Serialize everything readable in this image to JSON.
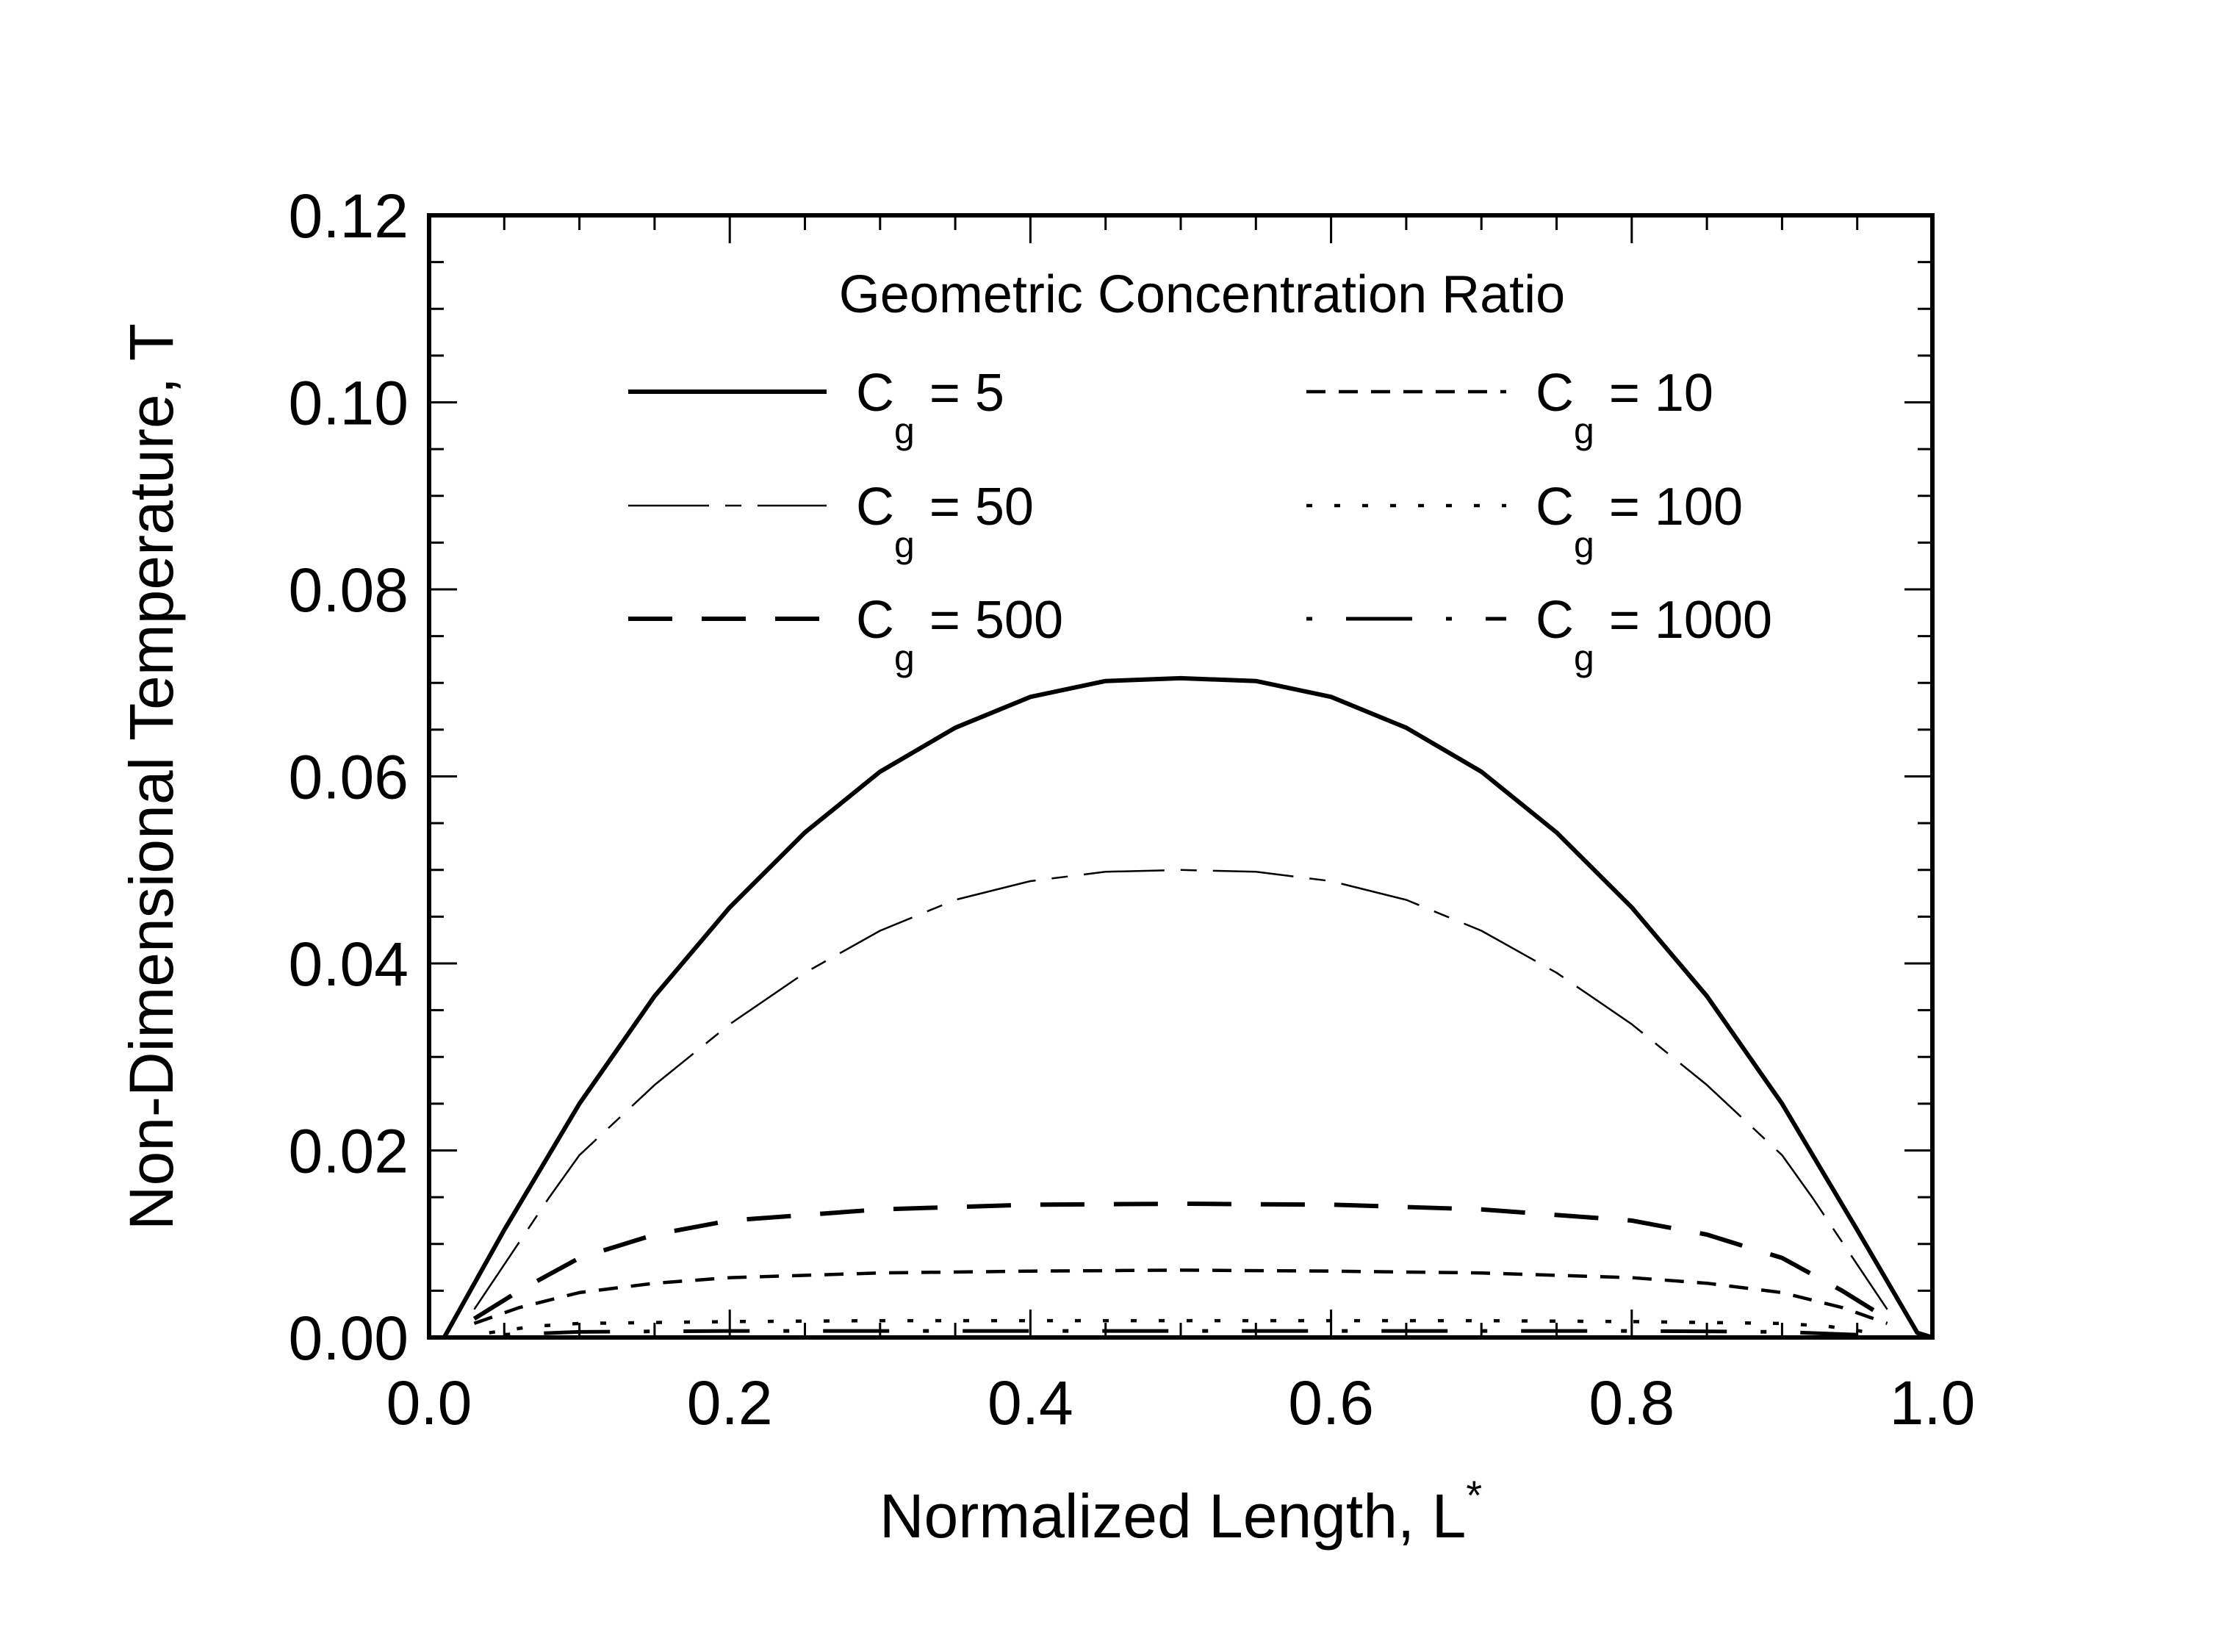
{
  "chart_data": {
    "type": "line",
    "title": "",
    "xlabel": "Normalized Length, L",
    "xlabel_superscript": "*",
    "ylabel": "Non-Dimensional Temperature, T",
    "xlim": [
      0.0,
      1.0
    ],
    "ylim": [
      0.0,
      0.12
    ],
    "x_ticks": [
      "0.0",
      "0.2",
      "0.4",
      "0.6",
      "0.8",
      "1.0"
    ],
    "y_ticks": [
      "0.00",
      "0.02",
      "0.04",
      "0.06",
      "0.08",
      "0.10",
      "0.12"
    ],
    "grid": false,
    "legend": {
      "title": "Geometric Concentration Ratio",
      "placement": "top-center"
    },
    "series": [
      {
        "name": "C = 5",
        "symbol": "C",
        "subscript": "g",
        "value_text": " = 5",
        "style": "solid",
        "color": "#000000",
        "x": [
          0.01,
          0.05,
          0.1,
          0.15,
          0.2,
          0.25,
          0.3,
          0.35,
          0.4,
          0.45,
          0.5,
          0.55,
          0.6,
          0.65,
          0.7,
          0.75,
          0.8,
          0.85,
          0.9,
          0.95,
          0.99,
          1.0
        ],
        "y": [
          0.0,
          0.0115,
          0.025,
          0.0365,
          0.046,
          0.054,
          0.0605,
          0.0652,
          0.0685,
          0.0702,
          0.0705,
          0.0702,
          0.0685,
          0.0652,
          0.0605,
          0.054,
          0.046,
          0.0365,
          0.025,
          0.0115,
          0.0005,
          0.0
        ]
      },
      {
        "name": "C = 10",
        "symbol": "C",
        "subscript": "g",
        "value_text": " = 10",
        "style": "short-dash",
        "color": "#000000",
        "x": [
          0.03,
          0.06,
          0.1,
          0.15,
          0.2,
          0.3,
          0.4,
          0.5,
          0.6,
          0.7,
          0.8,
          0.85,
          0.9,
          0.94,
          0.97
        ],
        "y": [
          0.0015,
          0.0032,
          0.0048,
          0.0058,
          0.0064,
          0.0069,
          0.0071,
          0.0072,
          0.0071,
          0.0069,
          0.0064,
          0.0058,
          0.0048,
          0.0032,
          0.0015
        ]
      },
      {
        "name": "C = 50",
        "symbol": "C",
        "subscript": "g",
        "value_text": " = 50",
        "style": "long-short-dash-thin",
        "color": "#000000",
        "x": [
          0.03,
          0.08,
          0.1,
          0.15,
          0.2,
          0.25,
          0.3,
          0.35,
          0.4,
          0.45,
          0.5,
          0.55,
          0.6,
          0.65,
          0.7,
          0.75,
          0.8,
          0.85,
          0.9,
          0.92,
          0.97
        ],
        "y": [
          0.003,
          0.015,
          0.0195,
          0.027,
          0.0335,
          0.039,
          0.0435,
          0.0468,
          0.0488,
          0.0498,
          0.05,
          0.0498,
          0.0488,
          0.0468,
          0.0435,
          0.039,
          0.0335,
          0.027,
          0.0195,
          0.015,
          0.003
        ]
      },
      {
        "name": "C = 100",
        "symbol": "C",
        "subscript": "g",
        "value_text": " = 100",
        "style": "dotted",
        "color": "#000000",
        "x": [
          0.04,
          0.07,
          0.1,
          0.2,
          0.3,
          0.4,
          0.5,
          0.6,
          0.7,
          0.8,
          0.9,
          0.93,
          0.96
        ],
        "y": [
          0.0005,
          0.0012,
          0.0015,
          0.0017,
          0.0018,
          0.0018,
          0.0018,
          0.0018,
          0.0018,
          0.0017,
          0.0015,
          0.0012,
          0.0005
        ]
      },
      {
        "name": "C = 500",
        "symbol": "C",
        "subscript": "g",
        "value_text": " = 500",
        "style": "long-dash",
        "color": "#000000",
        "x": [
          0.03,
          0.06,
          0.1,
          0.15,
          0.2,
          0.3,
          0.4,
          0.5,
          0.6,
          0.7,
          0.8,
          0.85,
          0.9,
          0.94,
          0.97
        ],
        "y": [
          0.002,
          0.005,
          0.0085,
          0.011,
          0.0125,
          0.0137,
          0.0142,
          0.0143,
          0.0142,
          0.0137,
          0.0125,
          0.011,
          0.0085,
          0.005,
          0.002
        ]
      },
      {
        "name": "C = 1000",
        "symbol": "C",
        "subscript": "g",
        "value_text": " = 1000",
        "style": "dot-long-dash",
        "color": "#000000",
        "x": [
          0.05,
          0.1,
          0.2,
          0.3,
          0.4,
          0.5,
          0.6,
          0.7,
          0.8,
          0.9,
          0.95
        ],
        "y": [
          0.0003,
          0.0006,
          0.0007,
          0.0007,
          0.0007,
          0.0007,
          0.0007,
          0.0007,
          0.0007,
          0.0006,
          0.0003
        ]
      }
    ]
  }
}
